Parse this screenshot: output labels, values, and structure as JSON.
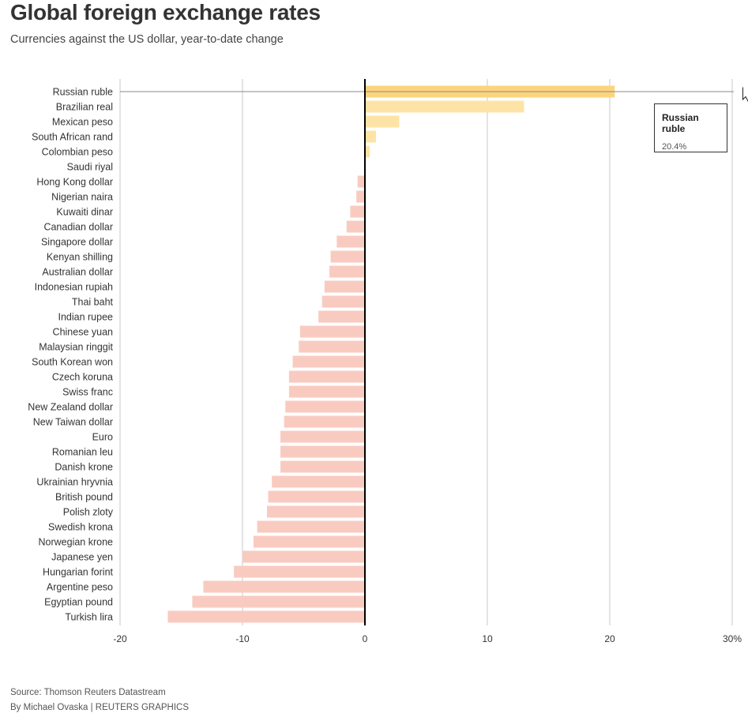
{
  "header": {
    "title": "Global foreign exchange rates",
    "subtitle": "Currencies against the US dollar, year-to-date change"
  },
  "tooltip": {
    "name": "Russian ruble",
    "value": "20.4%"
  },
  "footer": {
    "source": "Source: Thomson Reuters Datastream",
    "byline": "By Michael Ovaska | REUTERS GRAPHICS"
  },
  "colors": {
    "highlight": "#fdd47e",
    "positive": "#fde4a6",
    "negative": "#f9cbc0",
    "zero_line": "#000000",
    "grid": "#c8c8c8"
  },
  "chart_data": {
    "type": "bar",
    "orientation": "horizontal",
    "title": "Global foreign exchange rates",
    "subtitle": "Currencies against the US dollar, year-to-date change",
    "xlim": [
      -20,
      30
    ],
    "xticks": [
      -20,
      -10,
      0,
      10,
      20,
      30
    ],
    "xtick_labels": [
      "-20",
      "-10",
      "0",
      "10",
      "20",
      "30%"
    ],
    "grid": true,
    "highlighted": "Russian ruble",
    "categories": [
      "Russian ruble",
      "Brazilian real",
      "Mexican peso",
      "South African rand",
      "Colombian peso",
      "Saudi riyal",
      "Hong Kong dollar",
      "Nigerian naira",
      "Kuwaiti dinar",
      "Canadian dollar",
      "Singapore dollar",
      "Kenyan shilling",
      "Australian dollar",
      "Indonesian rupiah",
      "Thai baht",
      "Indian rupee",
      "Chinese yuan",
      "Malaysian ringgit",
      "South Korean won",
      "Czech koruna",
      "Swiss franc",
      "New Zealand dollar",
      "New Taiwan dollar",
      "Euro",
      "Romanian leu",
      "Danish krone",
      "Ukrainian hryvnia",
      "British pound",
      "Polish zloty",
      "Swedish krona",
      "Norwegian krone",
      "Japanese yen",
      "Hungarian forint",
      "Argentine peso",
      "Egyptian pound",
      "Turkish lira"
    ],
    "values": [
      20.4,
      13.0,
      2.8,
      0.9,
      0.4,
      0.0,
      -0.6,
      -0.7,
      -1.2,
      -1.5,
      -2.3,
      -2.8,
      -2.9,
      -3.3,
      -3.5,
      -3.8,
      -5.3,
      -5.4,
      -5.9,
      -6.2,
      -6.2,
      -6.5,
      -6.6,
      -6.9,
      -6.9,
      -6.9,
      -7.6,
      -7.9,
      -8.0,
      -8.8,
      -9.1,
      -10.0,
      -10.7,
      -13.2,
      -14.1,
      -16.1
    ]
  }
}
